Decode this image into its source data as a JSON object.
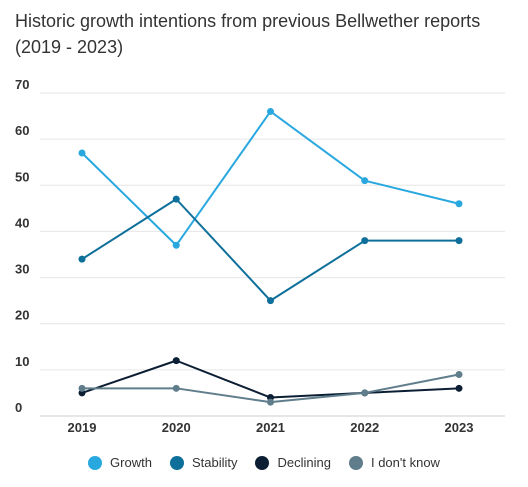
{
  "chart_data": {
    "type": "line",
    "title": "Historic growth intentions from previous Bellwether reports (2019 - 2023)",
    "xlabel": "",
    "ylabel": "",
    "categories": [
      "2019",
      "2020",
      "2021",
      "2022",
      "2023"
    ],
    "ylim": [
      0,
      70
    ],
    "yticks": [
      "0",
      "10",
      "20",
      "30",
      "40",
      "50",
      "60",
      "70"
    ],
    "grid": true,
    "legend_position": "bottom",
    "series": [
      {
        "name": "Growth",
        "color": "#29a8e0",
        "values": [
          57,
          37,
          66,
          51,
          46
        ]
      },
      {
        "name": "Stability",
        "color": "#0e6f9a",
        "values": [
          34,
          47,
          25,
          38,
          38
        ]
      },
      {
        "name": "Declining",
        "color": "#0b1e33",
        "values": [
          5,
          12,
          4,
          5,
          6
        ]
      },
      {
        "name": "I don't know",
        "color": "#607d8b",
        "values": [
          6,
          6,
          3,
          5,
          9
        ]
      }
    ]
  }
}
